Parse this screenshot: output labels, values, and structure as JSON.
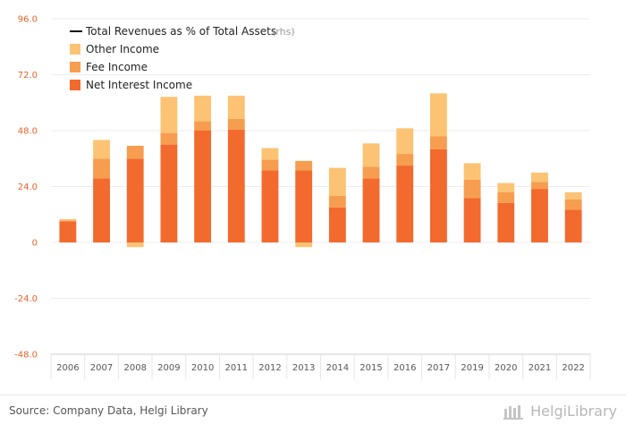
{
  "chart_data": {
    "type": "bar",
    "stacked": true,
    "categories": [
      "2006",
      "2007",
      "2008",
      "2009",
      "2010",
      "2011",
      "2012",
      "2013",
      "2014",
      "2015",
      "2016",
      "2017",
      "2019",
      "2020",
      "2021",
      "2022"
    ],
    "series": [
      {
        "name": "Net Interest Income",
        "color": "#f26a2e",
        "values": [
          9,
          27.5,
          36,
          42,
          48,
          48.5,
          31,
          31,
          15,
          27.5,
          33,
          40,
          19,
          17,
          23,
          14
        ]
      },
      {
        "name": "Fee Income",
        "color": "#f79d4f",
        "values": [
          0.5,
          8.5,
          5.5,
          5,
          4,
          4.5,
          4.5,
          4,
          5,
          5,
          5,
          5.5,
          8,
          4.5,
          3,
          4.5
        ]
      },
      {
        "name": "Other Income",
        "color": "#fbc373",
        "values": [
          0.5,
          8,
          0,
          15.5,
          11,
          10,
          5,
          0,
          12,
          10,
          11,
          18.5,
          7,
          4,
          4,
          3
        ]
      },
      {
        "name": "Other Income (negative)",
        "color": "#fbc373",
        "values": [
          0,
          0,
          -2,
          0,
          0,
          0,
          0,
          -2,
          0,
          0,
          0,
          0,
          0,
          0,
          0,
          0
        ]
      }
    ],
    "legend": {
      "position": "top-left",
      "line_item": "Total Revenues as % of Total Assets",
      "line_suffix": "(rhs)",
      "items": [
        "Other Income",
        "Fee Income",
        "Net Interest Income"
      ]
    },
    "ylim": [
      -48,
      96
    ],
    "yticks": [
      "96.0",
      "72.0",
      "48.0",
      "24.0",
      "0",
      "-24.0",
      "-48.0"
    ],
    "grid": true,
    "tick_color": "#e8622c"
  },
  "footer": {
    "source": "Source: Company Data, Helgi Library",
    "logo_text": "HelgiLibrary"
  }
}
